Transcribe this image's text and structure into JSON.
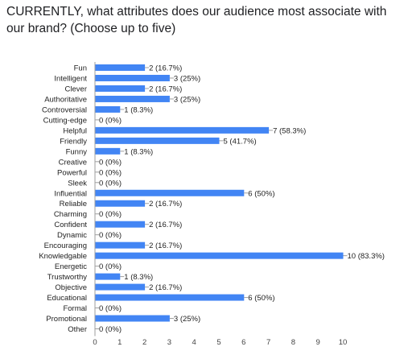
{
  "question": {
    "title": "CURRENTLY, what attributes does our audience most associate with our brand? (Choose up to five)"
  },
  "chart_data": {
    "type": "bar",
    "orientation": "horizontal",
    "categories": [
      "Fun",
      "Intelligent",
      "Clever",
      "Authoritative",
      "Controversial",
      "Cutting-edge",
      "Helpful",
      "Friendly",
      "Funny",
      "Creative",
      "Powerful",
      "Sleek",
      "Influential",
      "Reliable",
      "Charming",
      "Confident",
      "Dynamic",
      "Encouraging",
      "Knowledgable",
      "Energetic",
      "Trustworthy",
      "Objective",
      "Educational",
      "Formal",
      "Promotional",
      "Other"
    ],
    "values": [
      2,
      3,
      2,
      3,
      1,
      0,
      7,
      5,
      1,
      0,
      0,
      0,
      6,
      2,
      0,
      2,
      0,
      2,
      10,
      0,
      1,
      2,
      6,
      0,
      3,
      0
    ],
    "value_labels": [
      "2 (16.7%)",
      "3 (25%)",
      "2 (16.7%)",
      "3 (25%)",
      "1 (8.3%)",
      "0 (0%)",
      "7 (58.3%)",
      "5 (41.7%)",
      "1 (8.3%)",
      "0 (0%)",
      "0 (0%)",
      "0 (0%)",
      "6 (50%)",
      "2 (16.7%)",
      "0 (0%)",
      "2 (16.7%)",
      "0 (0%)",
      "2 (16.7%)",
      "10 (83.3%)",
      "0 (0%)",
      "1 (8.3%)",
      "2 (16.7%)",
      "6 (50%)",
      "0 (0%)",
      "3 (25%)",
      "0 (0%)"
    ],
    "x_ticks": [
      "0",
      "1",
      "2",
      "3",
      "4",
      "5",
      "6",
      "7",
      "8",
      "9",
      "10"
    ],
    "xlim": [
      0,
      10
    ],
    "bar_color": "#4285f4",
    "grid": false,
    "legend": "none"
  }
}
